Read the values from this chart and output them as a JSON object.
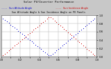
{
  "title": "Solar PV/Inverter Performance",
  "subtitle": "Sun Altitude Angle & Sun Incidence Angle on PV Panels",
  "blue_label": "Sun Altitude Angle",
  "red_label": "Sun Incidence Angle",
  "blue_color": "#0000cc",
  "red_color": "#cc0000",
  "background_color": "#c8c8c8",
  "plot_bg": "#ffffff",
  "grid_color": "#aaaaaa",
  "n_points": 49,
  "x_start": 0.02,
  "x_end": 0.98,
  "ylim": [
    0,
    1
  ],
  "xlim": [
    0,
    1
  ],
  "ytick_count": 6,
  "xtick_count": 11
}
